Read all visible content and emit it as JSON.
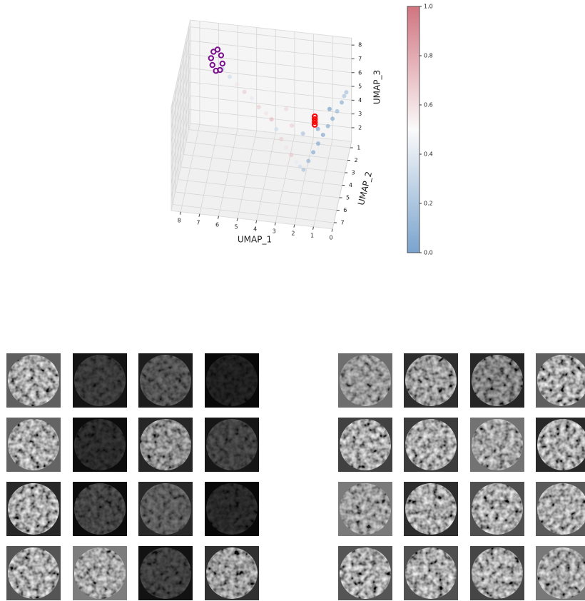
{
  "chart_data": {
    "type": "scatter3d",
    "xlabel": "UMAP_1",
    "ylabel": "UMAP_2",
    "zlabel": "UMAP_3",
    "xlim": [
      0,
      8.5
    ],
    "ylim": [
      0.5,
      7.5
    ],
    "zlim": [
      1,
      8.5
    ],
    "xticks": [
      0,
      1,
      2,
      3,
      4,
      5,
      6,
      7,
      8
    ],
    "yticks": [
      1,
      2,
      3,
      4,
      5,
      6,
      7
    ],
    "zticks": [
      2,
      3,
      4,
      5,
      6,
      7,
      8
    ],
    "grid": true,
    "colorscale": [
      "#2166ac",
      "#f7f7f7",
      "#b2182b"
    ],
    "opacity": 0.6,
    "clim": [
      0,
      1
    ],
    "cticks": [
      {
        "value": 0,
        "label": "0.0"
      },
      0.2,
      0.4,
      0.6,
      0.8,
      {
        "value": 1,
        "label": "1.0"
      }
    ],
    "series": [
      {
        "x": [
          6.6,
          6.2,
          5.8,
          5.4,
          5.0,
          4.6,
          4.2,
          3.9,
          3.6,
          3.3,
          3.0,
          2.7,
          2.4,
          2.2,
          2.0,
          1.8,
          1.6,
          1.4,
          1.2,
          1.0,
          0.8,
          0.6,
          0.4,
          0.3,
          0.2,
          2.8,
          2.2,
          1.5,
          1.0,
          3.2
        ],
        "y": [
          1.9,
          2.0,
          2.1,
          2.2,
          2.3,
          2.5,
          2.6,
          2.7,
          3.0,
          3.3,
          3.6,
          3.8,
          4.0,
          4.1,
          4.2,
          3.8,
          3.4,
          3.0,
          2.6,
          2.2,
          1.9,
          1.6,
          1.3,
          1.1,
          1.0,
          2.9,
          3.0,
          2.4,
          1.6,
          2.2
        ],
        "z": [
          6.5,
          6.1,
          5.7,
          5.3,
          5.0,
          4.6,
          4.3,
          4.0,
          3.6,
          3.2,
          2.9,
          2.6,
          2.3,
          2.1,
          2.0,
          2.3,
          2.6,
          2.9,
          3.2,
          3.5,
          3.8,
          4.1,
          4.5,
          4.8,
          5.0,
          3.9,
          3.5,
          3.4,
          4.2,
          4.4
        ],
        "c": [
          0.35,
          0.4,
          0.55,
          0.6,
          0.45,
          0.6,
          0.55,
          0.65,
          0.4,
          0.6,
          0.55,
          0.62,
          0.45,
          0.4,
          0.3,
          0.25,
          0.2,
          0.2,
          0.18,
          0.22,
          0.2,
          0.25,
          0.22,
          0.3,
          0.28,
          0.6,
          0.3,
          0.2,
          0.15,
          0.58
        ]
      },
      {
        "color": "#7b0f8f",
        "x": [
          7.1,
          6.9,
          6.7,
          6.6,
          6.7,
          6.9,
          7.1,
          7.2
        ],
        "y": [
          1.7,
          1.6,
          1.7,
          1.9,
          2.1,
          2.2,
          2.1,
          1.9
        ],
        "z": [
          7.5,
          7.6,
          7.3,
          6.9,
          6.6,
          6.6,
          6.9,
          7.2
        ]
      },
      {
        "color": "#ff0000",
        "x": [
          1.8,
          1.8,
          1.8,
          1.8
        ],
        "y": [
          1.45,
          1.45,
          1.45,
          1.45
        ],
        "z": [
          2.8,
          3.0,
          3.2,
          3.4
        ]
      }
    ]
  }
}
